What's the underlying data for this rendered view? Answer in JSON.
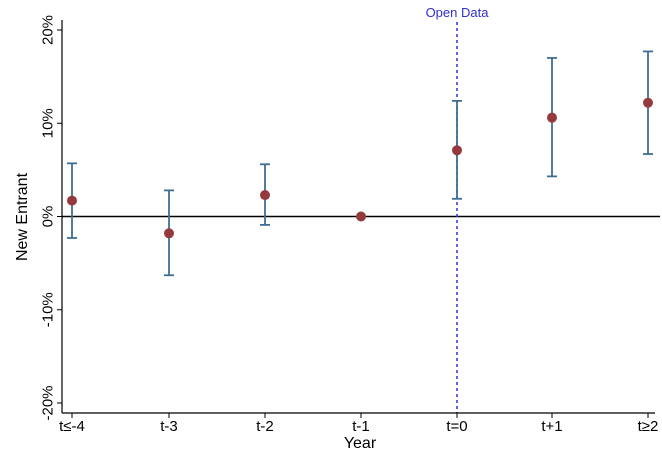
{
  "chart_data": {
    "type": "scatter",
    "xlabel": "Year",
    "ylabel": "New Entrant",
    "categories": [
      "t≤-4",
      "t-3",
      "t-2",
      "t-1",
      "t=0",
      "t+1",
      "t≥2"
    ],
    "points": [
      {
        "x": "t≤-4",
        "y": 1.7,
        "lower": -2.3,
        "upper": 5.7
      },
      {
        "x": "t-3",
        "y": -1.8,
        "lower": -6.3,
        "upper": 2.8
      },
      {
        "x": "t-2",
        "y": 2.3,
        "lower": -0.9,
        "upper": 5.6
      },
      {
        "x": "t-1",
        "y": 0.0,
        "lower": 0.0,
        "upper": 0.0
      },
      {
        "x": "t=0",
        "y": 7.1,
        "lower": 1.9,
        "upper": 12.4
      },
      {
        "x": "t+1",
        "y": 10.6,
        "lower": 4.3,
        "upper": 17.0
      },
      {
        "x": "t≥2",
        "y": 12.2,
        "lower": 6.7,
        "upper": 17.7
      }
    ],
    "ylim": [
      -20,
      20
    ],
    "yticks": [
      20,
      10,
      0,
      -10,
      -20
    ],
    "ytick_labels": [
      "20%",
      "10%",
      "0%",
      "-10%",
      "-20%"
    ],
    "reference_hline": 0,
    "annotation": {
      "text": "Open Data",
      "x_between": [
        "t-1",
        "t=0"
      ]
    },
    "colors": {
      "point": "#943a3e",
      "errorbar": "#3f6f90",
      "vline": "#3030d0",
      "annotation": "#3030d0",
      "axis": "#000000"
    }
  }
}
